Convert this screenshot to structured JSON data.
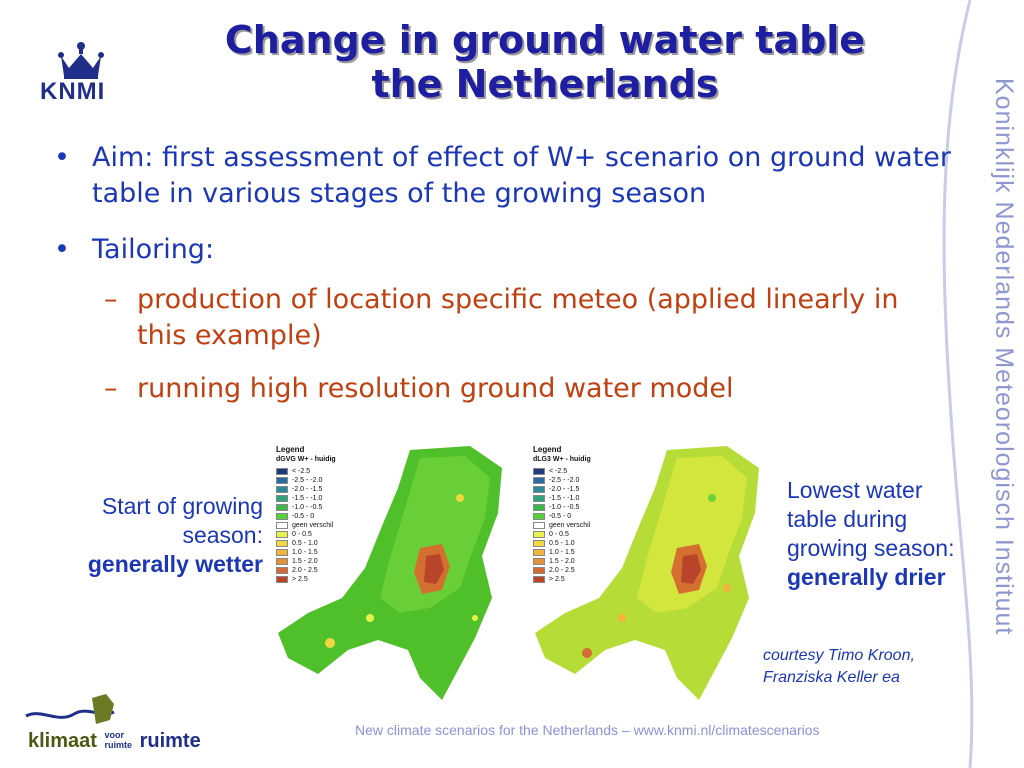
{
  "title": {
    "line1": "Change in ground water table",
    "line2": "the Netherlands"
  },
  "logo": {
    "text": "KNMI"
  },
  "sidebar": {
    "text": "Koninklijk Nederlands Meteorologisch Instituut"
  },
  "bullets": {
    "aim": {
      "marker": "•",
      "text": "Aim: first assessment of effect of W+ scenario on ground water table in various stages of the growing season"
    },
    "tailoring": {
      "marker": "•",
      "text": "Tailoring:"
    },
    "sub": [
      {
        "marker": "–",
        "text": "production of location specific meteo (applied linearly in this example)"
      },
      {
        "marker": "–",
        "text": "running high resolution ground water model"
      }
    ]
  },
  "captions": {
    "left": {
      "line1": "Start of growing",
      "line2": "season:",
      "bold": "generally wetter"
    },
    "right": {
      "line1": "Lowest water",
      "line2": "table during",
      "line3": "growing season:",
      "bold": "generally drier"
    }
  },
  "courtesy": {
    "line1": "courtesy Timo Kroon,",
    "line2": "Franziska Keller ea"
  },
  "footer": {
    "text": "New climate scenarios for the Netherlands – www.knmi.nl/climatescenarios"
  },
  "bottom_logo": {
    "word1": "klimaat",
    "voor1": "voor",
    "voor2": "ruimte",
    "word2": "ruimte"
  },
  "maps": [
    {
      "legend_title": "Legend",
      "legend_subtitle": "dGVG W+ - huidig",
      "entries": [
        "< -2.5",
        "-2.5 - -2.0",
        "-2.0 - -1.5",
        "-1.5 - -1.0",
        "-1.0 - -0.5",
        "-0.5 - 0",
        "geen verschil",
        "0 - 0.5",
        "0.5 - 1.0",
        "1.0 - 1.5",
        "1.5 - 2.0",
        "2.0 - 2.5",
        "> 2.5"
      ]
    },
    {
      "legend_title": "Legend",
      "legend_subtitle": "dLG3 W+ - huidig",
      "entries": [
        "< -2.5",
        "-2.5 - -2.0",
        "-2.0 - -1.5",
        "-1.5 - -1.0",
        "-1.0 - -0.5",
        "-0.5 - 0",
        "geen verschil",
        "0 - 0.5",
        "0.5 - 1.0",
        "1.0 - 1.5",
        "1.5 - 2.0",
        "2.0 - 2.5",
        "> 2.5"
      ]
    }
  ],
  "legend_colors": [
    "#1e3a7a",
    "#2a6aa0",
    "#2e8a9a",
    "#33a37a",
    "#3cb84a",
    "#55d23a",
    "#ffffff",
    "#e8f24a",
    "#f2d840",
    "#f0b43a",
    "#e6903a",
    "#d56a32",
    "#b8452a"
  ],
  "colors": {
    "title": "#1e1ea0",
    "bullet": "#1b37b5",
    "sub": "#bf4010",
    "sidebar": "#8f97d0",
    "footer": "#8b93d6"
  }
}
